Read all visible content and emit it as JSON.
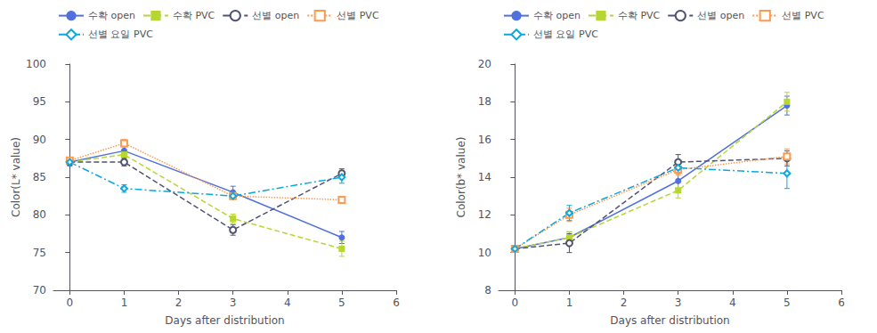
{
  "chart_data": [
    {
      "type": "line",
      "x_label": "Days after distribution",
      "y_label": "Color(L* value)",
      "x": [
        0,
        1,
        3,
        5
      ],
      "xlim": [
        -0.3,
        6
      ],
      "xticks": [
        0,
        1,
        2,
        3,
        4,
        5,
        6
      ],
      "ylim": [
        70,
        100
      ],
      "yticks": [
        70,
        75,
        80,
        85,
        90,
        95,
        100
      ],
      "grid": false,
      "legend": "top",
      "series": [
        {
          "name": "수확 open",
          "values": [
            87.0,
            88.5,
            83.0,
            77.0
          ],
          "yerr": [
            0.5,
            0.7,
            0.8,
            0.8
          ],
          "line_style": "solid",
          "marker": "circle"
        },
        {
          "name": "수확 PVC",
          "values": [
            87.0,
            88.0,
            79.5,
            75.5
          ],
          "yerr": [
            0.4,
            0.5,
            0.6,
            1.0
          ],
          "line_style": "dashed",
          "marker": "square"
        },
        {
          "name": "선별 open",
          "values": [
            87.0,
            87.0,
            78.0,
            85.5
          ],
          "yerr": [
            0.4,
            0.5,
            0.7,
            0.6
          ],
          "line_style": "dashed",
          "marker": "open_circle"
        },
        {
          "name": "선별 PVC",
          "values": [
            87.2,
            89.5,
            82.5,
            82.0
          ],
          "yerr": [
            0.3,
            0.5,
            0.4,
            0.4
          ],
          "line_style": "dotted",
          "marker": "open_square"
        },
        {
          "name": "선별 요일 PVC",
          "values": [
            87.0,
            83.5,
            82.5,
            85.0
          ],
          "yerr": [
            0.4,
            0.5,
            0.4,
            0.8
          ],
          "line_style": "dashdot",
          "marker": "open_diamond"
        }
      ]
    },
    {
      "type": "line",
      "x_label": "Days after distribution",
      "y_label": "Color(b* value)",
      "x": [
        0,
        1,
        3,
        5
      ],
      "xlim": [
        -0.3,
        6
      ],
      "xticks": [
        0,
        1,
        2,
        3,
        4,
        5,
        6
      ],
      "ylim": [
        8,
        20
      ],
      "yticks": [
        8,
        10,
        12,
        14,
        16,
        18,
        20
      ],
      "grid": false,
      "legend": "top",
      "series": [
        {
          "name": "수확 open",
          "values": [
            10.2,
            10.8,
            13.8,
            17.8
          ],
          "yerr": [
            0.15,
            0.3,
            0.4,
            0.5
          ],
          "line_style": "solid",
          "marker": "circle"
        },
        {
          "name": "수확 PVC",
          "values": [
            10.2,
            10.8,
            13.3,
            18.0
          ],
          "yerr": [
            0.15,
            0.3,
            0.4,
            0.5
          ],
          "line_style": "dashed",
          "marker": "square"
        },
        {
          "name": "선별 open",
          "values": [
            10.2,
            10.5,
            14.8,
            15.0
          ],
          "yerr": [
            0.15,
            0.5,
            0.4,
            0.4
          ],
          "line_style": "dashed",
          "marker": "open_circle"
        },
        {
          "name": "선별 PVC",
          "values": [
            10.2,
            12.0,
            14.4,
            15.1
          ],
          "yerr": [
            0.15,
            0.35,
            0.3,
            0.4
          ],
          "line_style": "dotted",
          "marker": "open_square"
        },
        {
          "name": "선별 요일 PVC",
          "values": [
            10.2,
            12.1,
            14.5,
            14.2
          ],
          "yerr": [
            0.15,
            0.4,
            0.3,
            0.8
          ],
          "line_style": "dashdot",
          "marker": "open_diamond"
        }
      ]
    }
  ]
}
